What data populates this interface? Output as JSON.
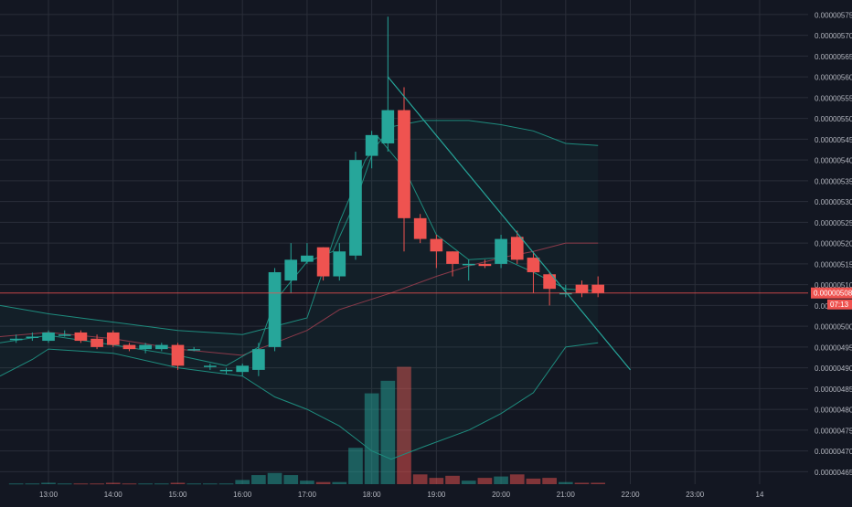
{
  "chart_data": {
    "type": "candlestick",
    "x_labels": [
      "13:00",
      "14:00",
      "15:00",
      "16:00",
      "17:00",
      "18:00",
      "19:00",
      "20:00",
      "21:00",
      "22:00",
      "23:00",
      "14"
    ],
    "y_ticks": [
      "0.00000465",
      "0.00000470",
      "0.00000475",
      "0.00000480",
      "0.00000485",
      "0.00000490",
      "0.00000495",
      "0.00000500",
      "0.00000505",
      "0.00000510",
      "0.00000515",
      "0.00000520",
      "0.00000525",
      "0.00000530",
      "0.00000535",
      "0.00000540",
      "0.00000545",
      "0.00000550",
      "0.00000555",
      "0.00000560",
      "0.00000565",
      "0.00000570",
      "0.00000575"
    ],
    "y_range": [
      4.62e-06,
      5.785e-06
    ],
    "x_range_hours": [
      12.25,
      24.75
    ],
    "last_price": "0.00000508",
    "countdown": "07:13",
    "colors": {
      "background": "#131722",
      "grid": "#2a2e39",
      "up": "#26a69a",
      "down": "#ef5350",
      "band": "#1e8c7e",
      "ma": "#8b3a4a",
      "trendline": "#26a69a",
      "price_line": "#ef5350",
      "label_text": "#b2b5be"
    },
    "candles": [
      {
        "t": 12.5,
        "o": 4.97e-06,
        "h": 4.98e-06,
        "l": 4.96e-06,
        "c": 4.97e-06
      },
      {
        "t": 12.75,
        "o": 4.975e-06,
        "h": 4.985e-06,
        "l": 4.965e-06,
        "c": 4.975e-06
      },
      {
        "t": 13.0,
        "o": 4.965e-06,
        "h": 4.99e-06,
        "l": 4.96e-06,
        "c": 4.985e-06
      },
      {
        "t": 13.25,
        "o": 4.98e-06,
        "h": 4.99e-06,
        "l": 4.975e-06,
        "c": 4.98e-06
      },
      {
        "t": 13.5,
        "o": 4.985e-06,
        "h": 4.99e-06,
        "l": 4.96e-06,
        "c": 4.965e-06
      },
      {
        "t": 13.75,
        "o": 4.97e-06,
        "h": 4.98e-06,
        "l": 4.945e-06,
        "c": 4.95e-06
      },
      {
        "t": 14.0,
        "o": 4.985e-06,
        "h": 4.99e-06,
        "l": 4.95e-06,
        "c": 4.955e-06
      },
      {
        "t": 14.25,
        "o": 4.955e-06,
        "h": 4.96e-06,
        "l": 4.94e-06,
        "c": 4.945e-06
      },
      {
        "t": 14.5,
        "o": 4.945e-06,
        "h": 4.96e-06,
        "l": 4.935e-06,
        "c": 4.955e-06
      },
      {
        "t": 14.75,
        "o": 4.945e-06,
        "h": 4.96e-06,
        "l": 4.94e-06,
        "c": 4.955e-06
      },
      {
        "t": 15.0,
        "o": 4.955e-06,
        "h": 4.96e-06,
        "l": 4.895e-06,
        "c": 4.905e-06
      },
      {
        "t": 15.25,
        "o": 4.945e-06,
        "h": 4.95e-06,
        "l": 4.94e-06,
        "c": 4.945e-06
      },
      {
        "t": 15.5,
        "o": 4.905e-06,
        "h": 4.91e-06,
        "l": 4.895e-06,
        "c": 4.905e-06
      },
      {
        "t": 15.75,
        "o": 4.895e-06,
        "h": 4.9e-06,
        "l": 4.885e-06,
        "c": 4.895e-06
      },
      {
        "t": 16.0,
        "o": 4.89e-06,
        "h": 4.91e-06,
        "l": 4.88e-06,
        "c": 4.905e-06
      },
      {
        "t": 16.25,
        "o": 4.895e-06,
        "h": 4.96e-06,
        "l": 4.88e-06,
        "c": 4.945e-06
      },
      {
        "t": 16.5,
        "o": 4.95e-06,
        "h": 5.14e-06,
        "l": 4.94e-06,
        "c": 5.13e-06
      },
      {
        "t": 16.75,
        "o": 5.11e-06,
        "h": 5.2e-06,
        "l": 5.08e-06,
        "c": 5.16e-06
      },
      {
        "t": 17.0,
        "o": 5.155e-06,
        "h": 5.2e-06,
        "l": 5.15e-06,
        "c": 5.17e-06
      },
      {
        "t": 17.25,
        "o": 5.19e-06,
        "h": 5.19e-06,
        "l": 5.11e-06,
        "c": 5.12e-06
      },
      {
        "t": 17.5,
        "o": 5.12e-06,
        "h": 5.2e-06,
        "l": 5.11e-06,
        "c": 5.18e-06
      },
      {
        "t": 17.75,
        "o": 5.17e-06,
        "h": 5.42e-06,
        "l": 5.16e-06,
        "c": 5.4e-06
      },
      {
        "t": 18.0,
        "o": 5.41e-06,
        "h": 5.47e-06,
        "l": 5.38e-06,
        "c": 5.46e-06
      },
      {
        "t": 18.25,
        "o": 5.44e-06,
        "h": 5.745e-06,
        "l": 5.42e-06,
        "c": 5.52e-06
      },
      {
        "t": 18.5,
        "o": 5.52e-06,
        "h": 5.575e-06,
        "l": 5.18e-06,
        "c": 5.26e-06
      },
      {
        "t": 18.75,
        "o": 5.26e-06,
        "h": 5.27e-06,
        "l": 5.2e-06,
        "c": 5.21e-06
      },
      {
        "t": 19.0,
        "o": 5.21e-06,
        "h": 5.22e-06,
        "l": 5.14e-06,
        "c": 5.18e-06
      },
      {
        "t": 19.25,
        "o": 5.18e-06,
        "h": 5.18e-06,
        "l": 5.12e-06,
        "c": 5.15e-06
      },
      {
        "t": 19.5,
        "o": 5.15e-06,
        "h": 5.16e-06,
        "l": 5.11e-06,
        "c": 5.15e-06
      },
      {
        "t": 19.75,
        "o": 5.15e-06,
        "h": 5.16e-06,
        "l": 5.14e-06,
        "c": 5.145e-06
      },
      {
        "t": 20.0,
        "o": 5.15e-06,
        "h": 5.22e-06,
        "l": 5.14e-06,
        "c": 5.21e-06
      },
      {
        "t": 20.25,
        "o": 5.215e-06,
        "h": 5.23e-06,
        "l": 5.15e-06,
        "c": 5.16e-06
      },
      {
        "t": 20.5,
        "o": 5.165e-06,
        "h": 5.18e-06,
        "l": 5.08e-06,
        "c": 5.13e-06
      },
      {
        "t": 20.75,
        "o": 5.125e-06,
        "h": 5.13e-06,
        "l": 5.05e-06,
        "c": 5.09e-06
      },
      {
        "t": 21.0,
        "o": 5.08e-06,
        "h": 5.1e-06,
        "l": 5.07e-06,
        "c": 5.08e-06
      },
      {
        "t": 21.25,
        "o": 5.1e-06,
        "h": 5.11e-06,
        "l": 5.07e-06,
        "c": 5.08e-06
      },
      {
        "t": 21.5,
        "o": 5.1e-06,
        "h": 5.12e-06,
        "l": 5.07e-06,
        "c": 5.08e-06
      }
    ],
    "volume": [
      {
        "t": 12.5,
        "v": 1
      },
      {
        "t": 12.75,
        "v": 1
      },
      {
        "t": 13.0,
        "v": 2
      },
      {
        "t": 13.25,
        "v": 1
      },
      {
        "t": 13.5,
        "v": 1
      },
      {
        "t": 13.75,
        "v": 1
      },
      {
        "t": 14.0,
        "v": 2
      },
      {
        "t": 14.25,
        "v": 1
      },
      {
        "t": 14.5,
        "v": 1
      },
      {
        "t": 14.75,
        "v": 1
      },
      {
        "t": 15.0,
        "v": 2
      },
      {
        "t": 15.25,
        "v": 1
      },
      {
        "t": 15.5,
        "v": 1
      },
      {
        "t": 15.75,
        "v": 1
      },
      {
        "t": 16.0,
        "v": 6
      },
      {
        "t": 16.25,
        "v": 13
      },
      {
        "t": 16.5,
        "v": 16
      },
      {
        "t": 16.75,
        "v": 13
      },
      {
        "t": 17.0,
        "v": 5
      },
      {
        "t": 17.25,
        "v": 3
      },
      {
        "t": 17.5,
        "v": 3
      },
      {
        "t": 17.75,
        "v": 52
      },
      {
        "t": 18.0,
        "v": 130
      },
      {
        "t": 18.25,
        "v": 148
      },
      {
        "t": 18.5,
        "v": 168
      },
      {
        "t": 18.75,
        "v": 14
      },
      {
        "t": 19.0,
        "v": 9
      },
      {
        "t": 19.25,
        "v": 12
      },
      {
        "t": 19.5,
        "v": 5
      },
      {
        "t": 19.75,
        "v": 9
      },
      {
        "t": 20.0,
        "v": 11
      },
      {
        "t": 20.25,
        "v": 14
      },
      {
        "t": 20.5,
        "v": 8
      },
      {
        "t": 20.75,
        "v": 9
      },
      {
        "t": 21.0,
        "v": 3
      },
      {
        "t": 21.25,
        "v": 2
      },
      {
        "t": 21.5,
        "v": 2
      }
    ],
    "volume_max": 170,
    "upper_band": [
      {
        "t": 12.25,
        "v": 5.05e-06
      },
      {
        "t": 13.0,
        "v": 5.03e-06
      },
      {
        "t": 14.0,
        "v": 5.01e-06
      },
      {
        "t": 15.0,
        "v": 4.99e-06
      },
      {
        "t": 16.0,
        "v": 4.98e-06
      },
      {
        "t": 16.5,
        "v": 5e-06
      },
      {
        "t": 17.0,
        "v": 5.02e-06
      },
      {
        "t": 17.5,
        "v": 5.25e-06
      },
      {
        "t": 17.9,
        "v": 5.4e-06
      },
      {
        "t": 18.3,
        "v": 5.48e-06
      },
      {
        "t": 18.8,
        "v": 5.495e-06
      },
      {
        "t": 19.5,
        "v": 5.495e-06
      },
      {
        "t": 20.0,
        "v": 5.485e-06
      },
      {
        "t": 20.5,
        "v": 5.47e-06
      },
      {
        "t": 21.0,
        "v": 5.44e-06
      },
      {
        "t": 21.5,
        "v": 5.435e-06
      }
    ],
    "lower_band": [
      {
        "t": 12.25,
        "v": 4.88e-06
      },
      {
        "t": 12.75,
        "v": 4.92e-06
      },
      {
        "t": 13.0,
        "v": 4.945e-06
      },
      {
        "t": 13.5,
        "v": 4.94e-06
      },
      {
        "t": 14.0,
        "v": 4.935e-06
      },
      {
        "t": 15.0,
        "v": 4.9e-06
      },
      {
        "t": 15.5,
        "v": 4.89e-06
      },
      {
        "t": 16.0,
        "v": 4.88e-06
      },
      {
        "t": 16.5,
        "v": 4.83e-06
      },
      {
        "t": 17.0,
        "v": 4.8e-06
      },
      {
        "t": 17.5,
        "v": 4.76e-06
      },
      {
        "t": 18.0,
        "v": 4.7e-06
      },
      {
        "t": 18.3,
        "v": 4.68e-06
      },
      {
        "t": 18.8,
        "v": 4.71e-06
      },
      {
        "t": 19.5,
        "v": 4.75e-06
      },
      {
        "t": 20.0,
        "v": 4.79e-06
      },
      {
        "t": 20.5,
        "v": 4.84e-06
      },
      {
        "t": 21.0,
        "v": 4.95e-06
      },
      {
        "t": 21.5,
        "v": 4.96e-06
      }
    ],
    "moving_average": [
      {
        "t": 12.25,
        "v": 4.975e-06
      },
      {
        "t": 13.0,
        "v": 4.985e-06
      },
      {
        "t": 14.0,
        "v": 4.97e-06
      },
      {
        "t": 15.0,
        "v": 4.945e-06
      },
      {
        "t": 16.0,
        "v": 4.93e-06
      },
      {
        "t": 16.5,
        "v": 4.96e-06
      },
      {
        "t": 17.0,
        "v": 4.99e-06
      },
      {
        "t": 17.5,
        "v": 5.04e-06
      },
      {
        "t": 18.3,
        "v": 5.08e-06
      },
      {
        "t": 19.0,
        "v": 5.12e-06
      },
      {
        "t": 19.5,
        "v": 5.145e-06
      },
      {
        "t": 20.0,
        "v": 5.165e-06
      },
      {
        "t": 20.5,
        "v": 5.18e-06
      },
      {
        "t": 21.0,
        "v": 5.2e-06
      },
      {
        "t": 21.5,
        "v": 5.2e-06
      }
    ],
    "fast_line": [
      {
        "t": 12.25,
        "v": 4.96e-06
      },
      {
        "t": 13.0,
        "v": 4.978e-06
      },
      {
        "t": 14.0,
        "v": 4.955e-06
      },
      {
        "t": 15.0,
        "v": 4.93e-06
      },
      {
        "t": 15.75,
        "v": 4.905e-06
      },
      {
        "t": 16.25,
        "v": 4.95e-06
      },
      {
        "t": 16.5,
        "v": 5.06e-06
      },
      {
        "t": 17.0,
        "v": 5.155e-06
      },
      {
        "t": 17.4,
        "v": 5.18e-06
      },
      {
        "t": 17.75,
        "v": 5.3e-06
      },
      {
        "t": 18.1,
        "v": 5.455e-06
      },
      {
        "t": 18.5,
        "v": 5.38e-06
      },
      {
        "t": 19.0,
        "v": 5.22e-06
      },
      {
        "t": 19.5,
        "v": 5.16e-06
      },
      {
        "t": 20.0,
        "v": 5.165e-06
      },
      {
        "t": 20.5,
        "v": 5.13e-06
      },
      {
        "t": 21.0,
        "v": 5.09e-06
      },
      {
        "t": 21.5,
        "v": 5.085e-06
      }
    ],
    "trendline": [
      {
        "t": 18.25,
        "v": 5.6e-06
      },
      {
        "t": 22.0,
        "v": 4.895e-06
      }
    ]
  }
}
